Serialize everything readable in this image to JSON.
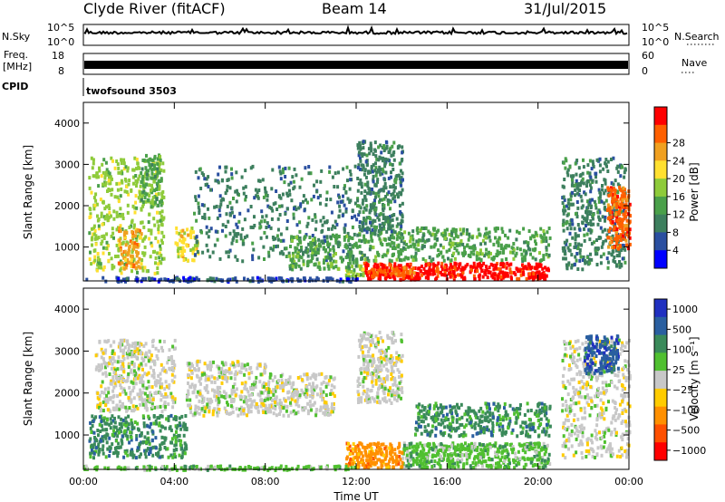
{
  "header": {
    "title": "Clyde River (fitACF)",
    "beam": "Beam 14",
    "date": "31/Jul/2015"
  },
  "top_strips": {
    "nsky": {
      "label": "N.Sky",
      "left_top": "10^5",
      "left_bottom": "10^0",
      "right_top": "10^5",
      "right_bottom": "10^0",
      "right_label": "N.Search"
    },
    "freq": {
      "label_line1": "Freq.",
      "label_line2": "[MHz]",
      "left_top": "18",
      "left_bottom": "8",
      "right_top": "60",
      "right_bottom": "0",
      "right_label": "Nave"
    },
    "cpid": {
      "label": "CPID",
      "value": "twofsound 3503"
    }
  },
  "colors": {
    "power": [
      "#0000ff",
      "#2a4fa0",
      "#3d7f5e",
      "#4aa04a",
      "#8ecb3a",
      "#ffe030",
      "#f0a020",
      "#ff6000",
      "#ff0000"
    ],
    "velocity": [
      "#ff0000",
      "#ff5000",
      "#ff9000",
      "#ffcc00",
      "#c8c8c8",
      "#50c030",
      "#3a8a5a",
      "#2a5fa0",
      "#2030c0"
    ]
  },
  "chart_data": [
    {
      "type": "heatmap",
      "panel": "power",
      "ylabel": "Slant Range [km]",
      "ylim": [
        180,
        4500
      ],
      "yticks": [
        "1000",
        "2000",
        "3000",
        "4000"
      ],
      "xlim": [
        0,
        24
      ],
      "xticks": [
        "00:00",
        "04:00",
        "08:00",
        "12:00",
        "16:00",
        "20:00",
        "00:00"
      ],
      "colorbar": {
        "label": "Power [dB]",
        "ticks": [
          "4",
          "8",
          "12",
          "16",
          "20",
          "24",
          "28"
        ]
      },
      "regions": [
        {
          "t": [
            12.3,
            20.5
          ],
          "r": [
            250,
            650
          ],
          "level": 8
        },
        {
          "t": [
            12.5,
            14.5
          ],
          "r": [
            300,
            550
          ],
          "level": 7
        },
        {
          "t": [
            11.5,
            12.3
          ],
          "r": [
            300,
            600
          ],
          "level": 4
        },
        {
          "t": [
            0.2,
            3.5
          ],
          "r": [
            400,
            3200
          ],
          "level": 4
        },
        {
          "t": [
            1.5,
            2.5
          ],
          "r": [
            500,
            1500
          ],
          "level": 6
        },
        {
          "t": [
            2.5,
            3.4
          ],
          "r": [
            2000,
            3300
          ],
          "level": 3
        },
        {
          "t": [
            4.0,
            5.0
          ],
          "r": [
            700,
            1500
          ],
          "level": 5
        },
        {
          "t": [
            4.8,
            12.0
          ],
          "r": [
            700,
            3000
          ],
          "level": 2
        },
        {
          "t": [
            9.0,
            12.0
          ],
          "r": [
            500,
            1300
          ],
          "level": 3
        },
        {
          "t": [
            12.0,
            20.5
          ],
          "r": [
            700,
            1500
          ],
          "level": 3
        },
        {
          "t": [
            12.0,
            14.0
          ],
          "r": [
            1400,
            3600
          ],
          "level": 2
        },
        {
          "t": [
            21.0,
            23.8
          ],
          "r": [
            500,
            3200
          ],
          "level": 2
        },
        {
          "t": [
            23.0,
            24.0
          ],
          "r": [
            1000,
            2500
          ],
          "level": 7
        },
        {
          "t": [
            0.0,
            12.0
          ],
          "r": [
            200,
            300
          ],
          "level": 1
        }
      ]
    },
    {
      "type": "heatmap",
      "panel": "velocity",
      "ylabel": "Slant Range [km]",
      "ylim": [
        180,
        4500
      ],
      "yticks": [
        "1000",
        "2000",
        "3000",
        "4000"
      ],
      "xlim": [
        0,
        24
      ],
      "xticks": [
        "00:00",
        "04:00",
        "08:00",
        "12:00",
        "16:00",
        "20:00",
        "00:00"
      ],
      "xlabel": "Time UT",
      "colorbar": {
        "label": "Velocity [m s⁻¹]",
        "ticks": [
          "1000",
          "500",
          "100",
          "25",
          "−25",
          "−100",
          "−500",
          "−1000"
        ]
      },
      "regions": [
        {
          "t": [
            14.0,
            20.5
          ],
          "r": [
            250,
            850
          ],
          "level": 5
        },
        {
          "t": [
            11.5,
            14.0
          ],
          "r": [
            250,
            850
          ],
          "level": 2
        },
        {
          "t": [
            0.2,
            4.5
          ],
          "r": [
            500,
            1500
          ],
          "level": 6
        },
        {
          "t": [
            0.5,
            4.0
          ],
          "r": [
            1600,
            3300
          ],
          "level": 4
        },
        {
          "t": [
            4.5,
            8.0
          ],
          "r": [
            1500,
            2800
          ],
          "level": 4
        },
        {
          "t": [
            8.0,
            11.0
          ],
          "r": [
            1500,
            2500
          ],
          "level": 4
        },
        {
          "t": [
            12.0,
            14.0
          ],
          "r": [
            1800,
            3500
          ],
          "level": 4
        },
        {
          "t": [
            14.5,
            20.5
          ],
          "r": [
            1000,
            1800
          ],
          "level": 6
        },
        {
          "t": [
            21.0,
            24.0
          ],
          "r": [
            500,
            3300
          ],
          "level": 4
        },
        {
          "t": [
            22.0,
            23.5
          ],
          "r": [
            2500,
            3400
          ],
          "level": 7
        },
        {
          "t": [
            0.0,
            12.0
          ],
          "r": [
            200,
            300
          ],
          "level": 5
        }
      ]
    }
  ]
}
